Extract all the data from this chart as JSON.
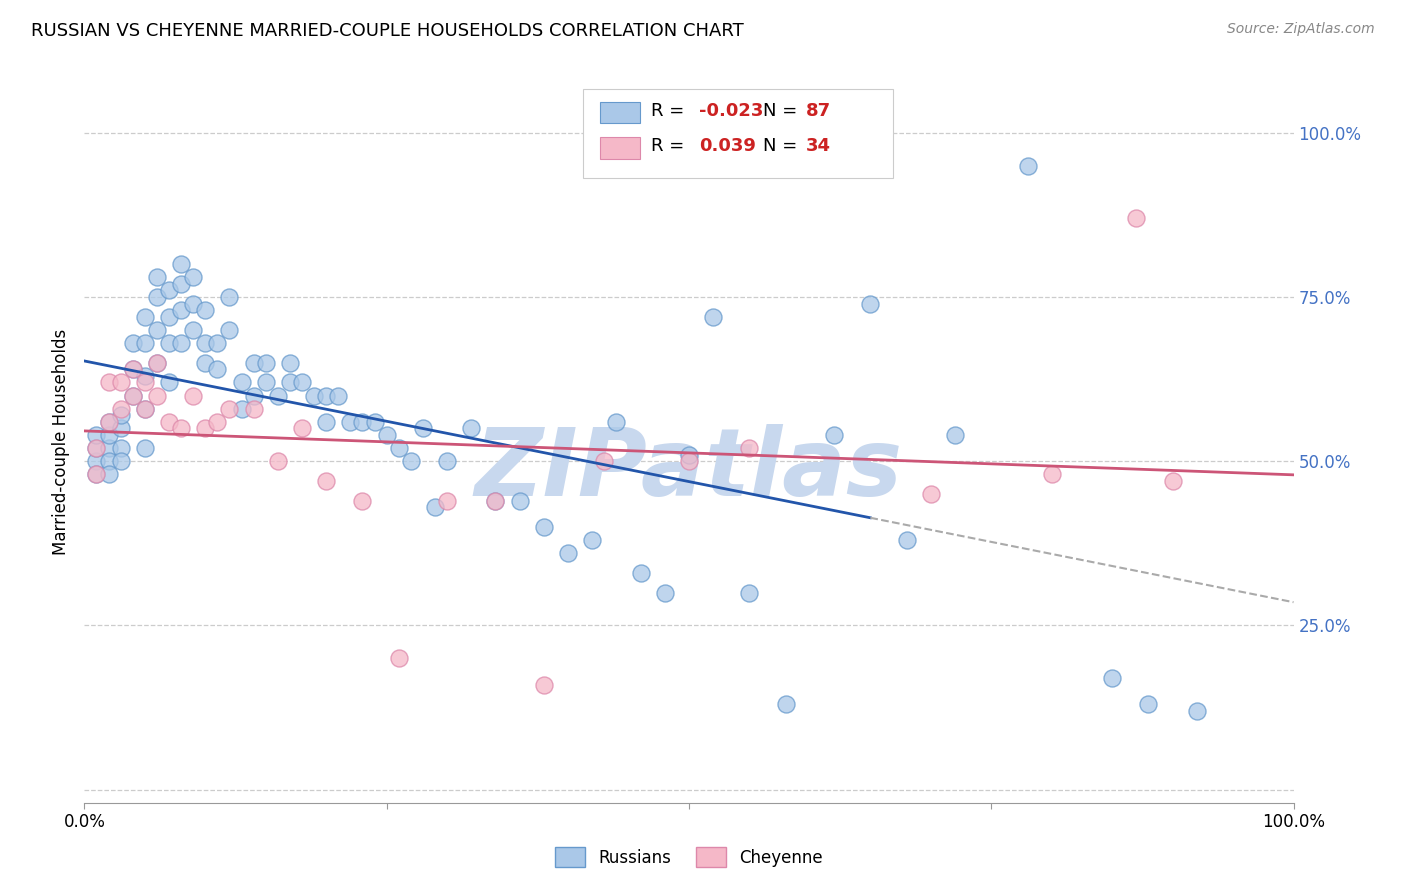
{
  "title": "RUSSIAN VS CHEYENNE MARRIED-COUPLE HOUSEHOLDS CORRELATION CHART",
  "source": "Source: ZipAtlas.com",
  "ylabel": "Married-couple Households",
  "xlim": [
    0.0,
    1.0
  ],
  "ylim": [
    -0.02,
    1.08
  ],
  "russian_R": -0.023,
  "russian_N": 87,
  "cheyenne_R": 0.039,
  "cheyenne_N": 34,
  "russian_color": "#aac8e8",
  "russian_edge_color": "#6699cc",
  "cheyenne_color": "#f5b8c8",
  "cheyenne_edge_color": "#dd88aa",
  "russian_line_color": "#2255aa",
  "cheyenne_line_color": "#cc5577",
  "dash_line_color": "#aaaaaa",
  "background_color": "#ffffff",
  "watermark": "ZIPatlas",
  "watermark_color": "#c8d8ee",
  "russian_trend_start_y": 0.585,
  "russian_trend_end_y": 0.545,
  "russian_trend_end_x": 0.65,
  "cheyenne_trend_start_y": 0.475,
  "cheyenne_trend_end_y": 0.5,
  "russians_x": [
    0.01,
    0.01,
    0.01,
    0.01,
    0.02,
    0.02,
    0.02,
    0.02,
    0.02,
    0.03,
    0.03,
    0.03,
    0.03,
    0.04,
    0.04,
    0.04,
    0.05,
    0.05,
    0.05,
    0.05,
    0.05,
    0.06,
    0.06,
    0.06,
    0.06,
    0.07,
    0.07,
    0.07,
    0.07,
    0.08,
    0.08,
    0.08,
    0.08,
    0.09,
    0.09,
    0.09,
    0.1,
    0.1,
    0.1,
    0.11,
    0.11,
    0.12,
    0.12,
    0.13,
    0.13,
    0.14,
    0.14,
    0.15,
    0.15,
    0.16,
    0.17,
    0.17,
    0.18,
    0.19,
    0.2,
    0.2,
    0.21,
    0.22,
    0.23,
    0.24,
    0.25,
    0.26,
    0.27,
    0.28,
    0.29,
    0.3,
    0.32,
    0.34,
    0.36,
    0.38,
    0.4,
    0.42,
    0.44,
    0.46,
    0.48,
    0.5,
    0.52,
    0.55,
    0.58,
    0.62,
    0.65,
    0.68,
    0.72,
    0.78,
    0.85,
    0.88,
    0.92
  ],
  "russians_y": [
    0.5,
    0.52,
    0.54,
    0.48,
    0.52,
    0.54,
    0.56,
    0.5,
    0.48,
    0.55,
    0.57,
    0.52,
    0.5,
    0.64,
    0.68,
    0.6,
    0.72,
    0.68,
    0.63,
    0.58,
    0.52,
    0.75,
    0.78,
    0.7,
    0.65,
    0.76,
    0.72,
    0.68,
    0.62,
    0.8,
    0.77,
    0.73,
    0.68,
    0.78,
    0.74,
    0.7,
    0.73,
    0.68,
    0.65,
    0.68,
    0.64,
    0.75,
    0.7,
    0.62,
    0.58,
    0.65,
    0.6,
    0.65,
    0.62,
    0.6,
    0.65,
    0.62,
    0.62,
    0.6,
    0.6,
    0.56,
    0.6,
    0.56,
    0.56,
    0.56,
    0.54,
    0.52,
    0.5,
    0.55,
    0.43,
    0.5,
    0.55,
    0.44,
    0.44,
    0.4,
    0.36,
    0.38,
    0.56,
    0.33,
    0.3,
    0.51,
    0.72,
    0.3,
    0.13,
    0.54,
    0.74,
    0.38,
    0.54,
    0.95,
    0.17,
    0.13,
    0.12
  ],
  "cheyenne_x": [
    0.01,
    0.01,
    0.02,
    0.02,
    0.03,
    0.03,
    0.04,
    0.04,
    0.05,
    0.05,
    0.06,
    0.06,
    0.07,
    0.08,
    0.09,
    0.1,
    0.11,
    0.12,
    0.14,
    0.16,
    0.18,
    0.2,
    0.23,
    0.26,
    0.3,
    0.34,
    0.38,
    0.43,
    0.5,
    0.55,
    0.7,
    0.8,
    0.87,
    0.9
  ],
  "cheyenne_y": [
    0.52,
    0.48,
    0.62,
    0.56,
    0.62,
    0.58,
    0.64,
    0.6,
    0.62,
    0.58,
    0.65,
    0.6,
    0.56,
    0.55,
    0.6,
    0.55,
    0.56,
    0.58,
    0.58,
    0.5,
    0.55,
    0.47,
    0.44,
    0.2,
    0.44,
    0.44,
    0.16,
    0.5,
    0.5,
    0.52,
    0.45,
    0.48,
    0.87,
    0.47
  ]
}
